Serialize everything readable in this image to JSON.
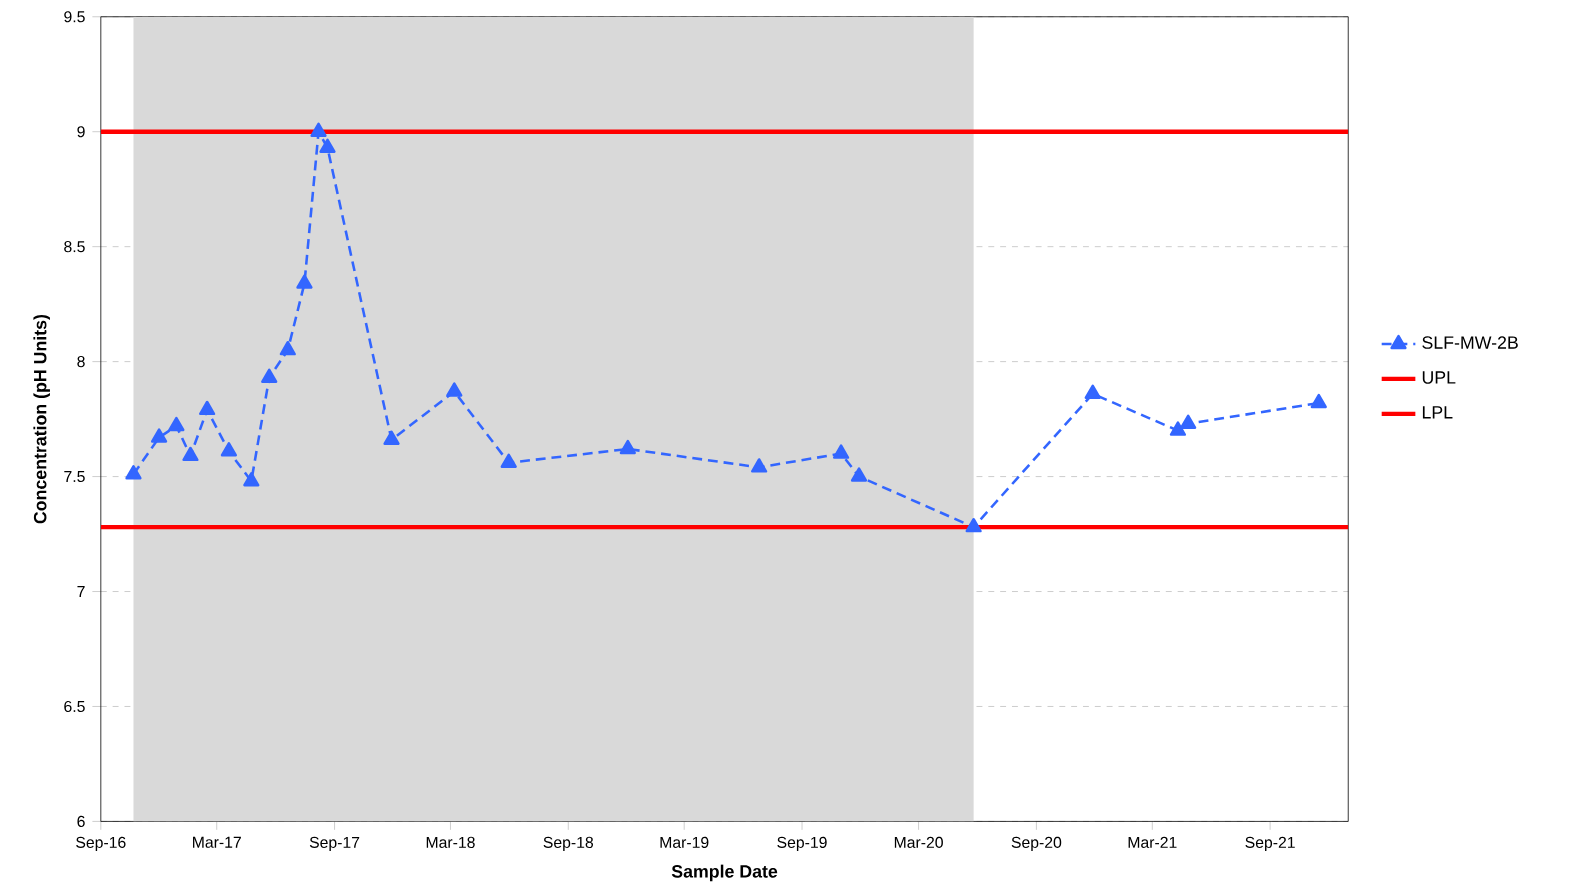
{
  "chart_data": {
    "type": "line",
    "xlabel": "Sample Date",
    "ylabel": "Concentration (pH Units)",
    "x": [
      "2016-10-22",
      "2016-12-01",
      "2016-12-28",
      "2017-01-19",
      "2017-02-14",
      "2017-03-20",
      "2017-04-24",
      "2017-05-22",
      "2017-06-20",
      "2017-07-16",
      "2017-08-07",
      "2017-08-21",
      "2017-11-29",
      "2018-03-07",
      "2018-05-31",
      "2018-12-03",
      "2019-06-26",
      "2019-11-01",
      "2019-11-29",
      "2020-05-26",
      "2020-11-28",
      "2021-04-10",
      "2021-04-26",
      "2021-11-16"
    ],
    "series": [
      {
        "name": "SLF-MW-2B",
        "color": "#3366ff",
        "values": [
          7.51,
          7.67,
          7.72,
          7.59,
          7.79,
          7.61,
          7.48,
          7.93,
          8.05,
          8.34,
          9.0,
          8.93,
          7.66,
          7.87,
          7.56,
          7.62,
          7.54,
          7.6,
          7.5,
          7.28,
          7.86,
          7.7,
          7.73,
          7.82
        ]
      }
    ],
    "marker": "triangle",
    "line_style": "dashed",
    "ref_lines": [
      {
        "axis": "y",
        "value": 9,
        "label": "UPL",
        "color": "#ff0000"
      },
      {
        "axis": "y",
        "value": 7.28,
        "label": "LPL",
        "color": "#ff0000"
      }
    ],
    "bands": [
      {
        "axis": "x",
        "from": "2016-10-22",
        "to": "2020-05-26",
        "color": "#d9d9d9"
      }
    ],
    "xlim": [
      "2016-09-01",
      "2022-01-01"
    ],
    "xticks": [
      {
        "value": "2016-09-01",
        "label": "Sep-16"
      },
      {
        "value": "2017-03-01",
        "label": "Mar-17"
      },
      {
        "value": "2017-09-01",
        "label": "Sep-17"
      },
      {
        "value": "2018-03-01",
        "label": "Mar-18"
      },
      {
        "value": "2018-09-01",
        "label": "Sep-18"
      },
      {
        "value": "2019-03-01",
        "label": "Mar-19"
      },
      {
        "value": "2019-09-01",
        "label": "Sep-19"
      },
      {
        "value": "2020-03-01",
        "label": "Mar-20"
      },
      {
        "value": "2020-09-01",
        "label": "Sep-20"
      },
      {
        "value": "2021-03-01",
        "label": "Mar-21"
      },
      {
        "value": "2021-09-01",
        "label": "Sep-21"
      }
    ],
    "ylim": [
      6,
      9.5
    ],
    "yticks": [
      6,
      6.5,
      7,
      7.5,
      8,
      8.5,
      9,
      9.5
    ],
    "grid": "y",
    "legend": "right"
  }
}
